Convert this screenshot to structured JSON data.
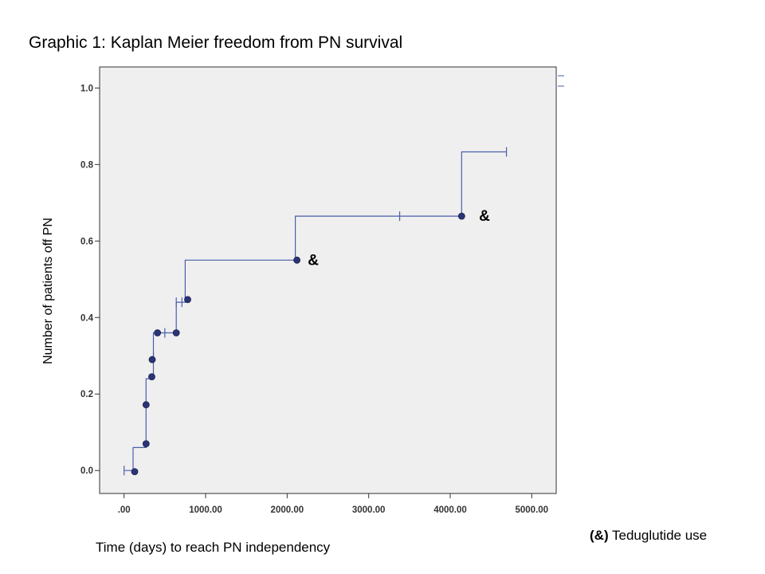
{
  "page": {
    "title": "Graphic 1:  Kaplan Meier freedom from PN survival",
    "footnote_symbol": "(&)",
    "footnote_text": " Teduglutide use"
  },
  "chart_data": {
    "type": "line",
    "subtype": "kaplan-meier-step",
    "xlabel": "Time (days) to reach PN independency",
    "ylabel": "Number of patients off PN",
    "xlim": [
      -300,
      5300
    ],
    "ylim": [
      -0.06,
      1.055
    ],
    "x_ticks": [
      0,
      1000,
      2000,
      3000,
      4000,
      5000
    ],
    "x_tick_labels": [
      ".00",
      "1000.00",
      "2000.00",
      "3000.00",
      "4000.00",
      "5000.00"
    ],
    "y_ticks": [
      0.0,
      0.2,
      0.4,
      0.6,
      0.8,
      1.0
    ],
    "y_tick_labels": [
      "0.0",
      "0.2",
      "0.4",
      "0.6",
      "0.8",
      "1.0"
    ],
    "grid": false,
    "plot_background": "#efefef",
    "line_color": "#4a5faa",
    "marker_color": "#2a3476",
    "step_curve": [
      [
        0,
        0.0
      ],
      [
        110,
        0.0
      ],
      [
        110,
        0.06
      ],
      [
        270,
        0.06
      ],
      [
        270,
        0.24
      ],
      [
        360,
        0.24
      ],
      [
        360,
        0.36
      ],
      [
        640,
        0.36
      ],
      [
        640,
        0.44
      ],
      [
        750,
        0.44
      ],
      [
        750,
        0.55
      ],
      [
        2100,
        0.55
      ],
      [
        2100,
        0.665
      ],
      [
        4140,
        0.665
      ],
      [
        4140,
        0.833
      ],
      [
        4690,
        0.833
      ]
    ],
    "event_points": [
      {
        "x": 130,
        "y": -0.003
      },
      {
        "x": 270,
        "y": 0.07
      },
      {
        "x": 270,
        "y": 0.172
      },
      {
        "x": 340,
        "y": 0.245
      },
      {
        "x": 345,
        "y": 0.29
      },
      {
        "x": 410,
        "y": 0.36
      },
      {
        "x": 640,
        "y": 0.36
      },
      {
        "x": 780,
        "y": 0.447
      },
      {
        "x": 2120,
        "y": 0.55
      },
      {
        "x": 4140,
        "y": 0.665
      }
    ],
    "censored_points": [
      {
        "x": 0,
        "y": 0.0
      },
      {
        "x": 360,
        "y": 0.296
      },
      {
        "x": 500,
        "y": 0.36
      },
      {
        "x": 640,
        "y": 0.44
      },
      {
        "x": 710,
        "y": 0.44
      },
      {
        "x": 3380,
        "y": 0.665
      },
      {
        "x": 4690,
        "y": 0.833
      }
    ],
    "annotations": [
      {
        "text": "&",
        "x": 2320,
        "y": 0.55
      },
      {
        "text": "&",
        "x": 4420,
        "y": 0.665
      }
    ],
    "legend_fragment": "right of plot, near 1.0"
  }
}
